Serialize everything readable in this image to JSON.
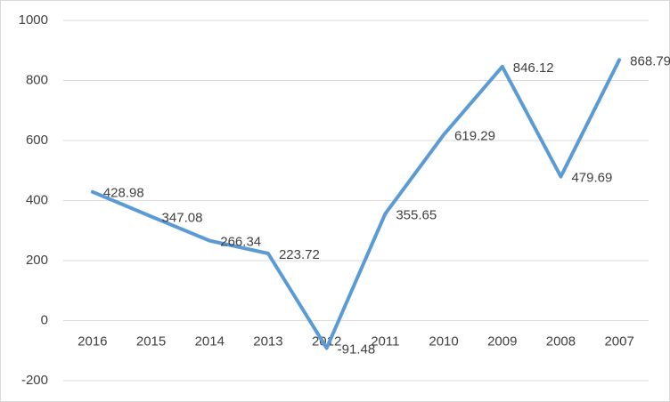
{
  "chart_data": {
    "type": "line",
    "categories": [
      "2016",
      "2015",
      "2014",
      "2013",
      "2012",
      "2011",
      "2010",
      "2009",
      "2008",
      "2007"
    ],
    "series": [
      {
        "color": "#5b9bd5",
        "values": [
          428.98,
          347.08,
          266.34,
          223.72,
          -91.48,
          355.65,
          619.29,
          846.12,
          479.69,
          868.79
        ]
      }
    ],
    "ylim": [
      -200,
      1000
    ],
    "yticks": [
      -200,
      0,
      200,
      400,
      600,
      800,
      1000
    ],
    "grid": true
  }
}
